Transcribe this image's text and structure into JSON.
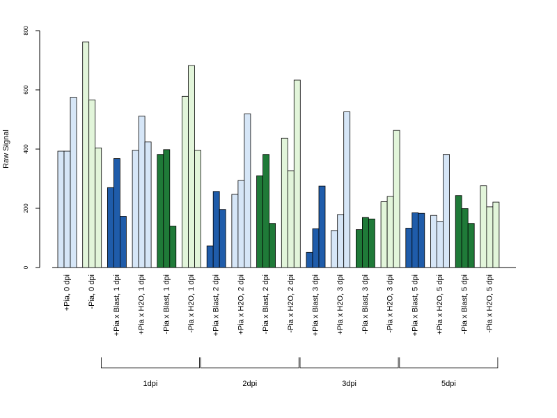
{
  "chart_data": {
    "type": "bar",
    "title": "",
    "xlabel": "",
    "ylabel": "Raw Signal",
    "ylim": [
      0,
      800
    ],
    "yticks": [
      0,
      200,
      400,
      600,
      800
    ],
    "grid": false,
    "legend": "none",
    "groups": [
      {
        "label": "+Pia, 0 dpi",
        "color": "#d6e6f7",
        "values": [
          393,
          393,
          575
        ]
      },
      {
        "label": "-Pia, 0 dpi",
        "color": "#e2f5da",
        "values": [
          762,
          566,
          404
        ]
      },
      {
        "label": "+Pia x Blast, 1 dpi",
        "color": "#1f5caa",
        "values": [
          270,
          368,
          173
        ]
      },
      {
        "label": "+Pia x H2O, 1 dpi",
        "color": "#d6e6f7",
        "values": [
          396,
          511,
          424
        ]
      },
      {
        "label": "-Pia x Blast, 1 dpi",
        "color": "#1f7a38",
        "values": [
          382,
          398,
          140
        ]
      },
      {
        "label": "-Pia x H2O, 1 dpi",
        "color": "#e2f5da",
        "values": [
          578,
          682,
          396
        ]
      },
      {
        "label": "+Pia x Blast, 2 dpi",
        "color": "#1f5caa",
        "values": [
          73,
          257,
          196
        ]
      },
      {
        "label": "+Pia x H2O, 2 dpi",
        "color": "#d6e6f7",
        "values": [
          247,
          294,
          519
        ]
      },
      {
        "label": "-Pia x Blast, 2 dpi",
        "color": "#1f7a38",
        "values": [
          310,
          382,
          149
        ]
      },
      {
        "label": "-Pia x H2O, 2 dpi",
        "color": "#e2f5da",
        "values": [
          437,
          327,
          633
        ]
      },
      {
        "label": "+Pia x Blast, 3 dpi",
        "color": "#1f5caa",
        "values": [
          51,
          131,
          275
        ]
      },
      {
        "label": "+Pia x H2O, 3 dpi",
        "color": "#d6e6f7",
        "values": [
          125,
          179,
          526
        ]
      },
      {
        "label": "-Pia x Blast, 3 dpi",
        "color": "#1f7a38",
        "values": [
          128,
          169,
          164
        ]
      },
      {
        "label": "-Pia x H2O, 3 dpi",
        "color": "#e2f5da",
        "values": [
          222,
          240,
          463
        ]
      },
      {
        "label": "+Pia x Blast, 5 dpi",
        "color": "#1f5caa",
        "values": [
          133,
          185,
          183
        ]
      },
      {
        "label": "+Pia x H2O, 5 dpi",
        "color": "#d6e6f7",
        "values": [
          176,
          156,
          382
        ]
      },
      {
        "label": "-Pia x Blast, 5 dpi",
        "color": "#1f7a38",
        "values": [
          243,
          199,
          149
        ]
      },
      {
        "label": "-Pia x H2O, 5 dpi",
        "color": "#e2f5da",
        "values": [
          276,
          205,
          221
        ]
      }
    ],
    "brackets": [
      {
        "label": "1dpi",
        "from_group": 2,
        "to_group": 5
      },
      {
        "label": "2dpi",
        "from_group": 6,
        "to_group": 9
      },
      {
        "label": "3dpi",
        "from_group": 10,
        "to_group": 13
      },
      {
        "label": "5dpi",
        "from_group": 14,
        "to_group": 17
      }
    ]
  }
}
